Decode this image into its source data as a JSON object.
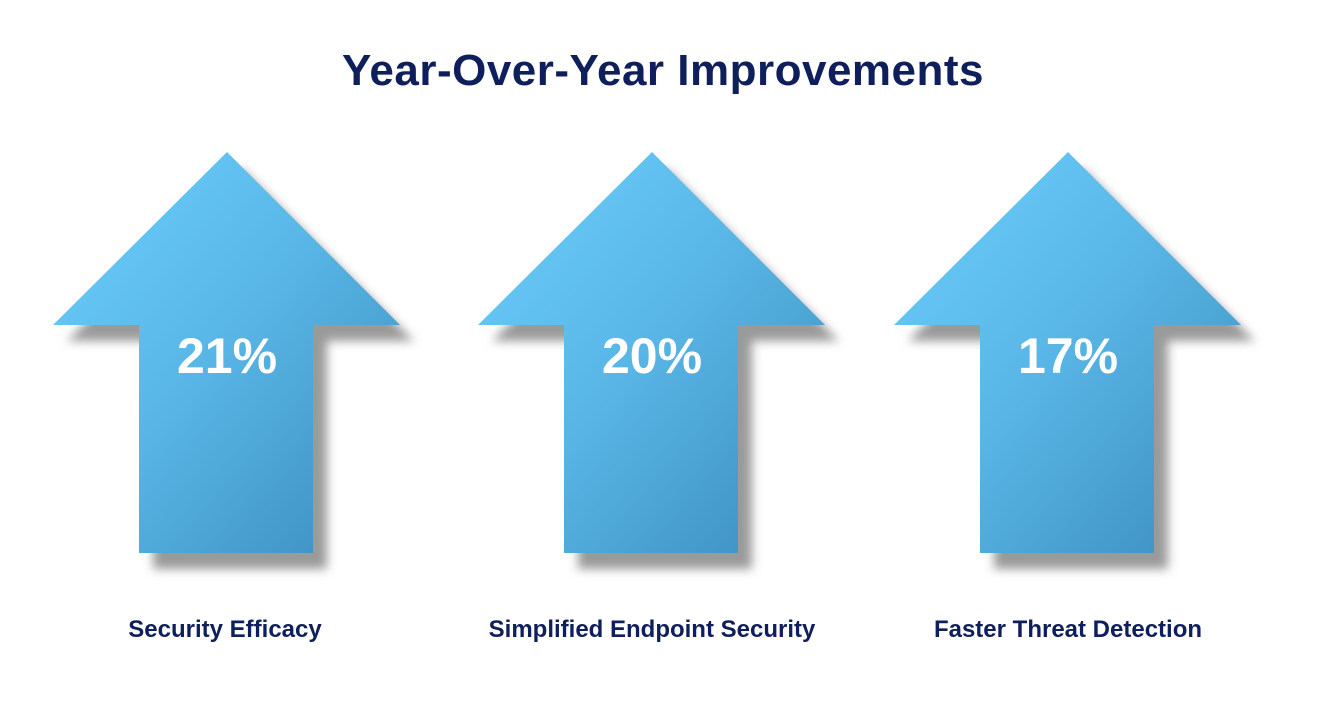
{
  "title": "Year-Over-Year Improvements",
  "colors": {
    "title": "#0f1f5c",
    "arrow_light": "#68cbfa",
    "arrow_dark": "#3a8cbc",
    "shadow": "#9a9a9a"
  },
  "items": [
    {
      "value": "21%",
      "label": "Security Efficacy"
    },
    {
      "value": "20%",
      "label": "Simplified Endpoint Security"
    },
    {
      "value": "17%",
      "label": "Faster Threat Detection"
    }
  ]
}
